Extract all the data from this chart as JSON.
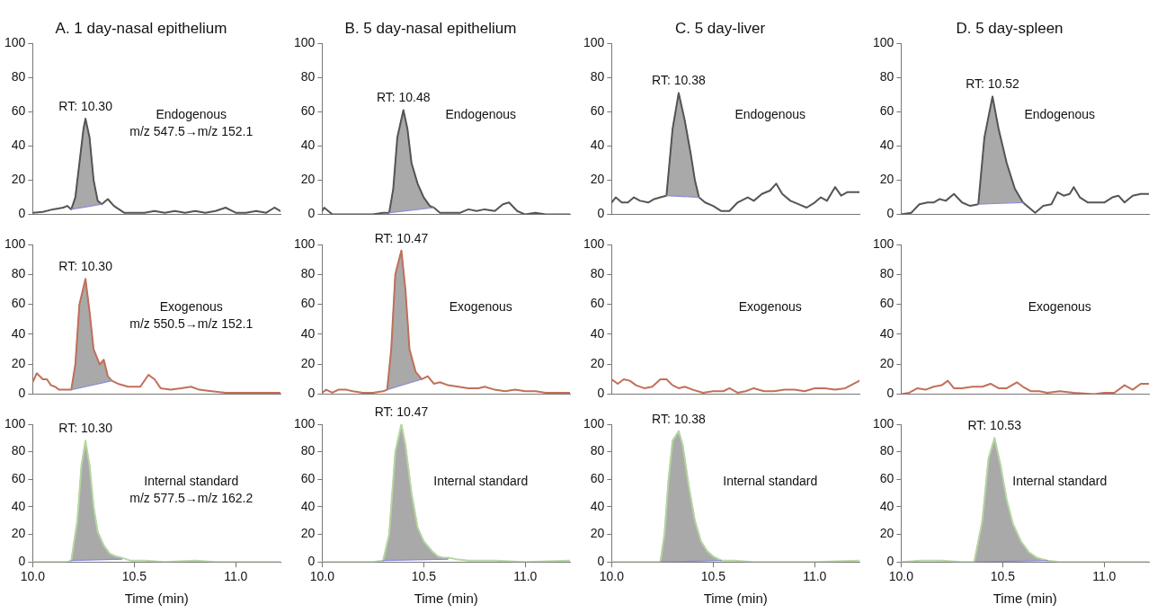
{
  "chart_data": [
    {
      "type": "line",
      "title": "A. 1 day-nasal epithelium",
      "xlim": [
        10,
        11.22
      ],
      "ylim": [
        0,
        100
      ],
      "yticks": [
        0,
        20,
        40,
        60,
        80,
        100
      ],
      "tick_labels": "y",
      "grid": false,
      "marker": "none",
      "annotations": [
        {
          "text": "RT: 10.30",
          "x": 10.26,
          "y": 56
        },
        "Endogenous",
        "m/z 547.5→m/z 152.1"
      ],
      "series": [
        {
          "color": "#555555",
          "x": [
            10.0,
            10.05,
            10.1,
            10.15,
            10.17,
            10.19,
            10.21,
            10.23,
            10.25,
            10.26,
            10.28,
            10.3,
            10.32,
            10.34,
            10.37,
            10.4,
            10.45,
            10.5,
            10.55,
            10.6,
            10.65,
            10.7,
            10.75,
            10.8,
            10.85,
            10.9,
            10.95,
            11.0,
            11.05,
            11.1,
            11.15,
            11.19,
            11.22
          ],
          "values": [
            1,
            1.5,
            3,
            4,
            5,
            3,
            10,
            30,
            50,
            56,
            45,
            20,
            8,
            6,
            9,
            5,
            1,
            1,
            1,
            2,
            1,
            2,
            1,
            2,
            1,
            2,
            4,
            1,
            1,
            2,
            1,
            4,
            2
          ]
        },
        {
          "type": "area",
          "color": "#a9a9a9",
          "x": [
            10.19,
            10.21,
            10.23,
            10.25,
            10.26,
            10.28,
            10.3,
            10.32,
            10.34
          ],
          "values": [
            3,
            10,
            30,
            50,
            56,
            45,
            20,
            8,
            6
          ]
        },
        {
          "color": "#8c8cd8",
          "x": [
            10.19,
            10.265,
            10.34
          ],
          "values": [
            3,
            4.5,
            6
          ]
        }
      ]
    },
    {
      "type": "line",
      "title": "B. 5 day-nasal epithelium",
      "xlim": [
        10,
        11.22
      ],
      "ylim": [
        0,
        100
      ],
      "yticks": [
        0,
        20,
        40,
        60,
        80,
        100
      ],
      "tick_labels": "y",
      "grid": false,
      "marker": "none",
      "annotations": [
        {
          "text": "RT: 10.48",
          "x": 10.4,
          "y": 61
        },
        "Endogenous"
      ],
      "series": [
        {
          "color": "#555555",
          "x": [
            10.0,
            10.01,
            10.05,
            10.15,
            10.25,
            10.3,
            10.33,
            10.35,
            10.37,
            10.4,
            10.42,
            10.44,
            10.47,
            10.5,
            10.53,
            10.55,
            10.58,
            10.63,
            10.68,
            10.72,
            10.76,
            10.8,
            10.85,
            10.89,
            10.92,
            10.96,
            11.0,
            11.05,
            11.1,
            11.22
          ],
          "values": [
            2,
            4,
            0,
            0,
            0,
            1,
            1,
            15,
            45,
            61,
            50,
            30,
            18,
            10,
            5,
            4,
            1,
            1,
            1,
            3,
            2,
            3,
            2,
            6,
            7,
            2,
            0,
            1,
            0,
            0
          ]
        },
        {
          "type": "area",
          "color": "#a9a9a9",
          "x": [
            10.33,
            10.35,
            10.37,
            10.4,
            10.42,
            10.44,
            10.47,
            10.5,
            10.53,
            10.55
          ],
          "values": [
            1,
            15,
            45,
            61,
            50,
            30,
            18,
            10,
            5,
            4
          ]
        },
        {
          "color": "#8c8cd8",
          "x": [
            10.33,
            10.44,
            10.55
          ],
          "values": [
            1,
            2.5,
            4
          ]
        }
      ]
    },
    {
      "type": "line",
      "title": "C. 5 day-liver",
      "xlim": [
        10,
        11.22
      ],
      "ylim": [
        0,
        100
      ],
      "yticks": [
        0,
        20,
        40,
        60,
        80,
        100
      ],
      "tick_labels": "y",
      "grid": false,
      "marker": "none",
      "annotations": [
        {
          "text": "RT: 10.38",
          "x": 10.33,
          "y": 71
        },
        "Endogenous"
      ],
      "series": [
        {
          "color": "#555555",
          "x": [
            10.0,
            10.02,
            10.05,
            10.08,
            10.11,
            10.14,
            10.18,
            10.21,
            10.24,
            10.27,
            10.3,
            10.33,
            10.36,
            10.39,
            10.41,
            10.43,
            10.46,
            10.5,
            10.54,
            10.58,
            10.62,
            10.67,
            10.7,
            10.74,
            10.78,
            10.81,
            10.84,
            10.88,
            10.92,
            10.96,
            11.0,
            11.03,
            11.06,
            11.1,
            11.13,
            11.16,
            11.22
          ],
          "values": [
            7,
            10,
            7,
            7,
            10,
            8,
            7,
            9,
            10,
            11,
            50,
            71,
            55,
            35,
            20,
            10,
            7,
            5,
            2,
            2,
            7,
            10,
            8,
            12,
            14,
            18,
            12,
            8,
            6,
            4,
            7,
            10,
            8,
            16,
            11,
            13,
            13
          ]
        },
        {
          "type": "area",
          "color": "#a9a9a9",
          "x": [
            10.27,
            10.3,
            10.33,
            10.36,
            10.39,
            10.41,
            10.43
          ],
          "values": [
            11,
            50,
            71,
            55,
            35,
            20,
            10
          ]
        },
        {
          "color": "#8c8cd8",
          "x": [
            10.27,
            10.35,
            10.43
          ],
          "values": [
            11,
            10.5,
            10
          ]
        }
      ]
    },
    {
      "type": "line",
      "title": "D. 5 day-spleen",
      "xlim": [
        10,
        11.22
      ],
      "ylim": [
        0,
        100
      ],
      "yticks": [
        0,
        20,
        40,
        60,
        80,
        100
      ],
      "tick_labels": "y",
      "grid": false,
      "marker": "none",
      "annotations": [
        {
          "text": "RT: 10.52",
          "x": 10.45,
          "y": 69
        },
        "Endogenous"
      ],
      "series": [
        {
          "color": "#555555",
          "x": [
            10.0,
            10.05,
            10.09,
            10.13,
            10.16,
            10.19,
            10.22,
            10.26,
            10.3,
            10.34,
            10.38,
            10.41,
            10.45,
            10.48,
            10.52,
            10.56,
            10.6,
            10.63,
            10.66,
            10.7,
            10.74,
            10.77,
            10.8,
            10.83,
            10.85,
            10.88,
            10.92,
            10.96,
            11.0,
            11.04,
            11.07,
            11.1,
            11.14,
            11.18,
            11.22
          ],
          "values": [
            0,
            1,
            6,
            7,
            7,
            9,
            8,
            12,
            7,
            5,
            6,
            45,
            69,
            50,
            30,
            15,
            7,
            4,
            1,
            5,
            6,
            13,
            11,
            12,
            16,
            10,
            7,
            7,
            7,
            10,
            11,
            7,
            11,
            12,
            12
          ]
        },
        {
          "type": "area",
          "color": "#a9a9a9",
          "x": [
            10.38,
            10.41,
            10.45,
            10.48,
            10.52,
            10.56,
            10.6
          ],
          "values": [
            6,
            45,
            69,
            50,
            30,
            15,
            7
          ]
        },
        {
          "color": "#8c8cd8",
          "x": [
            10.38,
            10.49,
            10.6
          ],
          "values": [
            6,
            6.5,
            7
          ]
        }
      ]
    },
    {
      "type": "line",
      "xlim": [
        10,
        11.22
      ],
      "ylim": [
        0,
        100
      ],
      "yticks": [
        0,
        20,
        40,
        60,
        80,
        100
      ],
      "tick_labels": "y",
      "grid": false,
      "marker": "none",
      "annotations": [
        {
          "text": "RT: 10.30",
          "x": 10.26,
          "y": 77
        },
        "Exogenous",
        "m/z 550.5→m/z 152.1"
      ],
      "series": [
        {
          "color": "#c0705a",
          "x": [
            10.0,
            10.02,
            10.05,
            10.07,
            10.09,
            10.11,
            10.13,
            10.16,
            10.19,
            10.21,
            10.23,
            10.26,
            10.28,
            10.3,
            10.33,
            10.35,
            10.37,
            10.39,
            10.42,
            10.47,
            10.53,
            10.57,
            10.6,
            10.63,
            10.68,
            10.73,
            10.78,
            10.82,
            10.88,
            10.95,
            11.0,
            11.1,
            11.22
          ],
          "values": [
            8,
            14,
            10,
            10,
            6,
            5,
            3,
            3,
            3,
            20,
            60,
            77,
            55,
            30,
            20,
            23,
            12,
            9,
            7,
            5,
            5,
            13,
            10,
            4,
            3,
            4,
            5,
            3,
            2,
            1,
            1,
            1,
            1
          ]
        },
        {
          "type": "area",
          "color": "#a9a9a9",
          "x": [
            10.19,
            10.21,
            10.23,
            10.26,
            10.28,
            10.3,
            10.33,
            10.35,
            10.37,
            10.39
          ],
          "values": [
            3,
            20,
            60,
            77,
            55,
            30,
            20,
            23,
            12,
            9
          ]
        },
        {
          "color": "#8c8cd8",
          "x": [
            10.19,
            10.29,
            10.39
          ],
          "values": [
            3,
            6,
            9
          ]
        }
      ]
    },
    {
      "type": "line",
      "xlim": [
        10,
        11.22
      ],
      "ylim": [
        0,
        100
      ],
      "yticks": [
        0,
        20,
        40,
        60,
        80,
        100
      ],
      "tick_labels": "y",
      "grid": false,
      "marker": "none",
      "annotations": [
        {
          "text": "RT: 10.47",
          "x": 10.39,
          "y": 96
        },
        "Exogenous"
      ],
      "series": [
        {
          "color": "#c0705a",
          "x": [
            10.0,
            10.02,
            10.05,
            10.08,
            10.12,
            10.15,
            10.2,
            10.25,
            10.3,
            10.32,
            10.34,
            10.36,
            10.39,
            10.41,
            10.43,
            10.46,
            10.49,
            10.52,
            10.55,
            10.58,
            10.62,
            10.67,
            10.72,
            10.77,
            10.8,
            10.85,
            10.9,
            10.95,
            11.0,
            11.05,
            11.1,
            11.15,
            11.22
          ],
          "values": [
            1,
            3,
            1,
            3,
            3,
            2,
            1,
            1,
            2,
            3,
            30,
            80,
            96,
            70,
            30,
            15,
            10,
            12,
            7,
            8,
            6,
            5,
            4,
            4,
            5,
            3,
            2,
            3,
            2,
            2,
            1,
            1,
            1
          ]
        },
        {
          "type": "area",
          "color": "#a9a9a9",
          "x": [
            10.32,
            10.34,
            10.36,
            10.39,
            10.41,
            10.43,
            10.46,
            10.49
          ],
          "values": [
            3,
            30,
            80,
            96,
            70,
            30,
            15,
            10
          ]
        },
        {
          "color": "#8c8cd8",
          "x": [
            10.32,
            10.405,
            10.49
          ],
          "values": [
            3,
            6.5,
            10
          ]
        }
      ]
    },
    {
      "type": "line",
      "xlim": [
        10,
        11.22
      ],
      "ylim": [
        0,
        100
      ],
      "yticks": [
        0,
        20,
        40,
        60,
        80,
        100
      ],
      "tick_labels": "y",
      "grid": false,
      "marker": "none",
      "annotations": [
        "Exogenous"
      ],
      "series": [
        {
          "color": "#c0705a",
          "x": [
            10.0,
            10.03,
            10.06,
            10.09,
            10.12,
            10.16,
            10.2,
            10.24,
            10.27,
            10.3,
            10.33,
            10.36,
            10.4,
            10.45,
            10.5,
            10.55,
            10.58,
            10.62,
            10.66,
            10.7,
            10.75,
            10.8,
            10.85,
            10.9,
            10.95,
            11.0,
            11.05,
            11.1,
            11.15,
            11.22
          ],
          "values": [
            10,
            7,
            10,
            9,
            6,
            4,
            5,
            10,
            10,
            6,
            4,
            5,
            3,
            1,
            2,
            2,
            4,
            1,
            2,
            4,
            2,
            2,
            3,
            3,
            2,
            4,
            4,
            3,
            4,
            9
          ]
        }
      ]
    },
    {
      "type": "line",
      "xlim": [
        10,
        11.22
      ],
      "ylim": [
        0,
        100
      ],
      "yticks": [
        0,
        20,
        40,
        60,
        80,
        100
      ],
      "tick_labels": "y",
      "grid": false,
      "marker": "none",
      "annotations": [
        "Exogenous"
      ],
      "series": [
        {
          "color": "#c0705a",
          "x": [
            10.0,
            10.04,
            10.08,
            10.12,
            10.16,
            10.2,
            10.23,
            10.26,
            10.3,
            10.35,
            10.4,
            10.44,
            10.48,
            10.52,
            10.57,
            10.6,
            10.64,
            10.68,
            10.72,
            10.78,
            10.85,
            10.95,
            11.0,
            11.05,
            11.1,
            11.14,
            11.18,
            11.22
          ],
          "values": [
            0,
            1,
            4,
            3,
            5,
            6,
            9,
            4,
            4,
            5,
            5,
            7,
            4,
            4,
            8,
            5,
            2,
            2,
            1,
            2,
            1,
            0,
            1,
            1,
            6,
            3,
            7,
            7
          ]
        }
      ]
    },
    {
      "type": "line",
      "xlabel": "Time (min)",
      "xlim": [
        10,
        11.22
      ],
      "xticks": [
        {
          "value": 10,
          "label": "10.0"
        },
        {
          "value": 10.5,
          "label": "10.5"
        },
        {
          "value": 11,
          "label": "11.0"
        }
      ],
      "ylim": [
        0,
        100
      ],
      "yticks": [
        0,
        20,
        40,
        60,
        80,
        100
      ],
      "grid": false,
      "marker": "none",
      "annotations": [
        {
          "text": "RT: 10.30",
          "x": 10.26,
          "y": 88
        },
        "Internal standard",
        "m/z 577.5→m/z 162.2"
      ],
      "series": [
        {
          "color": "#b5d6a0",
          "x": [
            10.0,
            10.1,
            10.17,
            10.19,
            10.22,
            10.24,
            10.26,
            10.28,
            10.3,
            10.32,
            10.35,
            10.38,
            10.41,
            10.44,
            10.48,
            10.55,
            10.65,
            10.8,
            10.9,
            11.0,
            11.22
          ],
          "values": [
            0,
            0,
            0,
            1,
            30,
            70,
            88,
            70,
            40,
            22,
            12,
            6,
            4,
            3,
            1,
            1,
            0,
            1,
            0,
            0,
            0
          ]
        },
        {
          "type": "area",
          "color": "#a9a9a9",
          "x": [
            10.19,
            10.22,
            10.24,
            10.26,
            10.28,
            10.3,
            10.32,
            10.35,
            10.38,
            10.41,
            10.44
          ],
          "values": [
            1,
            30,
            70,
            88,
            70,
            40,
            22,
            12,
            6,
            4,
            3
          ]
        },
        {
          "color": "#8c8cd8",
          "x": [
            10.19,
            10.315,
            10.44
          ],
          "values": [
            1,
            1.5,
            2
          ]
        }
      ]
    },
    {
      "type": "line",
      "xlabel": "Time (min)",
      "xlim": [
        10,
        11.22
      ],
      "xticks": [
        {
          "value": 10,
          "label": "10.0"
        },
        {
          "value": 10.5,
          "label": "10.5"
        },
        {
          "value": 11,
          "label": "11.0"
        }
      ],
      "ylim": [
        0,
        100
      ],
      "yticks": [
        0,
        20,
        40,
        60,
        80,
        100
      ],
      "grid": false,
      "marker": "none",
      "annotations": [
        {
          "text": "RT: 10.47",
          "x": 10.39,
          "y": 100
        },
        "Internal standard"
      ],
      "series": [
        {
          "color": "#b5d6a0",
          "x": [
            10.0,
            10.25,
            10.3,
            10.33,
            10.36,
            10.39,
            10.41,
            10.44,
            10.47,
            10.5,
            10.54,
            10.57,
            10.6,
            10.62,
            10.66,
            10.72,
            10.85,
            11.0,
            11.22
          ],
          "values": [
            0,
            0,
            1,
            20,
            80,
            100,
            85,
            50,
            25,
            15,
            8,
            4,
            3,
            3,
            2,
            1,
            1,
            0,
            1
          ]
        },
        {
          "type": "area",
          "color": "#a9a9a9",
          "x": [
            10.3,
            10.33,
            10.36,
            10.39,
            10.41,
            10.44,
            10.47,
            10.5,
            10.54,
            10.57,
            10.6,
            10.62
          ],
          "values": [
            1,
            20,
            80,
            100,
            85,
            50,
            25,
            15,
            8,
            4,
            3,
            3
          ]
        },
        {
          "color": "#8c8cd8",
          "x": [
            10.3,
            10.46,
            10.62
          ],
          "values": [
            1,
            1.5,
            2
          ]
        }
      ]
    },
    {
      "type": "line",
      "xlabel": "Time (min)",
      "xlim": [
        10,
        11.22
      ],
      "xticks": [
        {
          "value": 10,
          "label": "10.0"
        },
        {
          "value": 10.5,
          "label": "10.5"
        },
        {
          "value": 11,
          "label": "11.0"
        }
      ],
      "ylim": [
        0,
        100
      ],
      "yticks": [
        0,
        20,
        40,
        60,
        80,
        100
      ],
      "grid": false,
      "marker": "none",
      "annotations": [
        {
          "text": "RT: 10.38",
          "x": 10.33,
          "y": 95
        },
        "Internal standard"
      ],
      "series": [
        {
          "color": "#b5d6a0",
          "x": [
            10.0,
            10.15,
            10.24,
            10.26,
            10.28,
            10.3,
            10.33,
            10.35,
            10.38,
            10.41,
            10.44,
            10.47,
            10.5,
            10.54,
            10.6,
            10.7,
            11.0,
            11.22
          ],
          "values": [
            0,
            0,
            0,
            20,
            60,
            88,
            95,
            85,
            55,
            30,
            15,
            8,
            4,
            1,
            1,
            0,
            0,
            1
          ]
        },
        {
          "type": "area",
          "color": "#a9a9a9",
          "x": [
            10.24,
            10.26,
            10.28,
            10.3,
            10.33,
            10.35,
            10.38,
            10.41,
            10.44,
            10.47,
            10.5,
            10.54
          ],
          "values": [
            0,
            20,
            60,
            88,
            95,
            85,
            55,
            30,
            15,
            8,
            4,
            1
          ]
        },
        {
          "color": "#8c8cd8",
          "x": [
            10.24,
            10.39,
            10.54
          ],
          "values": [
            0,
            0.5,
            1
          ]
        }
      ]
    },
    {
      "type": "line",
      "xlabel": "Time (min)",
      "xlim": [
        10,
        11.22
      ],
      "xticks": [
        {
          "value": 10,
          "label": "10.0"
        },
        {
          "value": 10.5,
          "label": "10.5"
        },
        {
          "value": 11,
          "label": "11.0"
        }
      ],
      "ylim": [
        0,
        100
      ],
      "yticks": [
        0,
        20,
        40,
        60,
        80,
        100
      ],
      "grid": false,
      "marker": "none",
      "annotations": [
        {
          "text": "RT: 10.53",
          "x": 10.46,
          "y": 90
        },
        "Internal standard"
      ],
      "series": [
        {
          "color": "#b5d6a0",
          "x": [
            10.0,
            10.1,
            10.2,
            10.3,
            10.36,
            10.4,
            10.43,
            10.46,
            10.49,
            10.52,
            10.55,
            10.59,
            10.63,
            10.67,
            10.72,
            10.78,
            11.0,
            11.22
          ],
          "values": [
            0,
            1,
            1,
            0,
            0,
            30,
            75,
            90,
            70,
            45,
            28,
            15,
            7,
            3,
            1,
            0,
            0,
            0
          ]
        },
        {
          "type": "area",
          "color": "#a9a9a9",
          "x": [
            10.36,
            10.4,
            10.43,
            10.46,
            10.49,
            10.52,
            10.55,
            10.59,
            10.63,
            10.67,
            10.72
          ],
          "values": [
            0,
            30,
            75,
            90,
            70,
            45,
            28,
            15,
            7,
            3,
            1
          ]
        },
        {
          "color": "#8c8cd8",
          "x": [
            10.36,
            10.54,
            10.72
          ],
          "values": [
            0,
            0.5,
            1
          ]
        }
      ]
    }
  ]
}
